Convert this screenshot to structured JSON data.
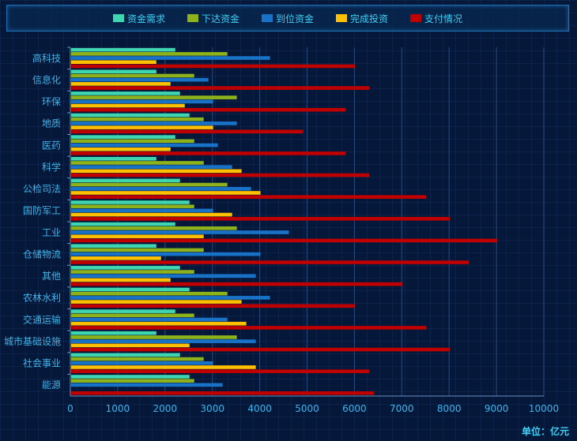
{
  "chart_data": {
    "type": "bar",
    "orientation": "horizontal",
    "categories": [
      "高科技",
      "信息化",
      "环保",
      "地质",
      "医药",
      "科学",
      "公检司法",
      "国防军工",
      "工业",
      "仓储物流",
      "其他",
      "农林水利",
      "交通运输",
      "城市基础设施",
      "社会事业",
      "能源"
    ],
    "series": [
      {
        "name": "资金需求",
        "color": "#3ed6b0",
        "values": [
          2200,
          1800,
          2300,
          2500,
          2200,
          1800,
          2300,
          2500,
          2200,
          1800,
          2300,
          2500,
          2200,
          1800,
          2300,
          2500
        ]
      },
      {
        "name": "下达资金",
        "color": "#8db21a",
        "values": [
          3300,
          2600,
          3500,
          2800,
          2600,
          2800,
          3300,
          2600,
          3500,
          2800,
          2600,
          3300,
          2600,
          3500,
          2800,
          2600
        ]
      },
      {
        "name": "到位资金",
        "color": "#1873c8",
        "values": [
          4200,
          2900,
          3000,
          3500,
          3100,
          3400,
          3800,
          3000,
          4600,
          4000,
          3900,
          4200,
          3300,
          3900,
          3000,
          3200
        ]
      },
      {
        "name": "完成投资",
        "color": "#ffc000",
        "values": [
          1800,
          2100,
          2400,
          3000,
          2100,
          3600,
          4000,
          3400,
          2800,
          1900,
          2100,
          3600,
          3700,
          2500,
          3900,
          0
        ]
      },
      {
        "name": "支付情况",
        "color": "#c00000",
        "values": [
          6000,
          6300,
          5800,
          4900,
          5800,
          6300,
          7500,
          8000,
          9000,
          8400,
          7000,
          6000,
          7500,
          8000,
          6300,
          6400
        ]
      }
    ],
    "xlim": [
      0,
      10000
    ],
    "xticks": [
      0,
      1000,
      2000,
      3000,
      4000,
      5000,
      6000,
      7000,
      8000,
      9000,
      10000
    ],
    "unit_label": "单位：亿元",
    "grid": true,
    "legend_position": "top"
  }
}
